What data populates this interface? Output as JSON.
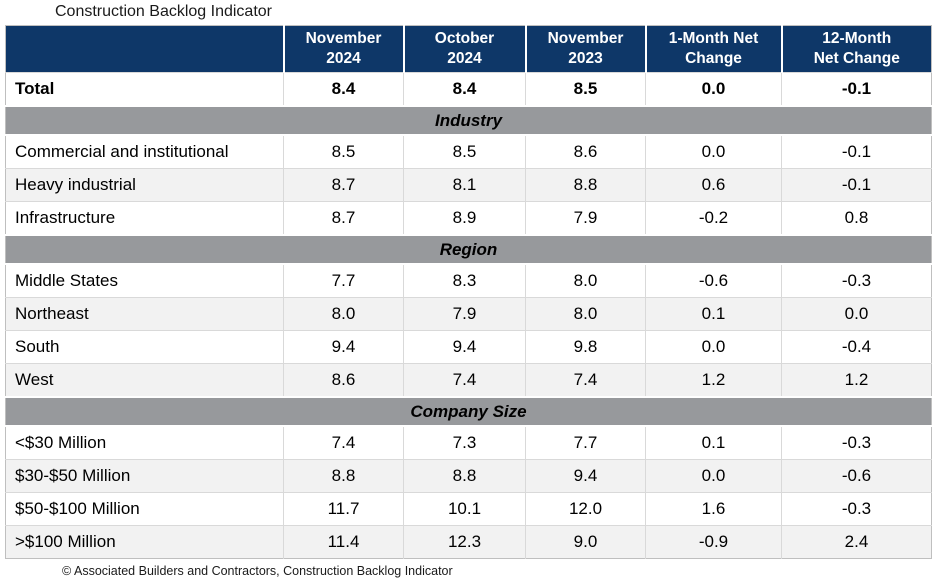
{
  "title": "Construction Backlog Indicator",
  "footer": "© Associated Builders and Contractors, Construction Backlog Indicator",
  "colors": {
    "header_bg": "#0e3768",
    "header_text": "#ffffff",
    "section_band_bg": "#97999c",
    "alt_row_bg": "#f2f2f2",
    "row_border": "#d9d9d9"
  },
  "header": {
    "columns": [
      {
        "lines": []
      },
      {
        "lines": [
          "November",
          "2024"
        ]
      },
      {
        "lines": [
          "October",
          "2024"
        ]
      },
      {
        "lines": [
          "November",
          "2023"
        ]
      },
      {
        "lines": [
          "1-Month Net",
          "Change"
        ]
      },
      {
        "lines": [
          "12-Month",
          "Net Change"
        ]
      }
    ]
  },
  "chart_data": {
    "type": "table",
    "title": "Construction Backlog Indicator",
    "columns": [
      "",
      "November 2024",
      "October 2024",
      "November 2023",
      "1-Month Net Change",
      "12-Month Net Change"
    ],
    "sections": [
      {
        "name": null,
        "rows": [
          {
            "label": "Total",
            "bold": true,
            "values": [
              8.4,
              8.4,
              8.5,
              0.0,
              -0.1
            ]
          }
        ]
      },
      {
        "name": "Industry",
        "rows": [
          {
            "label": "Commercial and institutional",
            "values": [
              8.5,
              8.5,
              8.6,
              0.0,
              -0.1
            ]
          },
          {
            "label": "Heavy industrial",
            "values": [
              8.7,
              8.1,
              8.8,
              0.6,
              -0.1
            ]
          },
          {
            "label": "Infrastructure",
            "values": [
              8.7,
              8.9,
              7.9,
              -0.2,
              0.8
            ]
          }
        ]
      },
      {
        "name": "Region",
        "rows": [
          {
            "label": "Middle States",
            "values": [
              7.7,
              8.3,
              8.0,
              -0.6,
              -0.3
            ]
          },
          {
            "label": "Northeast",
            "values": [
              8.0,
              7.9,
              8.0,
              0.1,
              0.0
            ]
          },
          {
            "label": "South",
            "values": [
              9.4,
              9.4,
              9.8,
              0.0,
              -0.4
            ]
          },
          {
            "label": "West",
            "values": [
              8.6,
              7.4,
              7.4,
              1.2,
              1.2
            ]
          }
        ]
      },
      {
        "name": "Company Size",
        "rows": [
          {
            "label": "<$30 Million",
            "values": [
              7.4,
              7.3,
              7.7,
              0.1,
              -0.3
            ]
          },
          {
            "label": "$30-$50 Million",
            "values": [
              8.8,
              8.8,
              9.4,
              0.0,
              -0.6
            ]
          },
          {
            "label": "$50-$100 Million",
            "values": [
              11.7,
              10.1,
              12.0,
              1.6,
              -0.3
            ]
          },
          {
            "label": ">$100 Million",
            "values": [
              11.4,
              12.3,
              9.0,
              -0.9,
              2.4
            ]
          }
        ]
      }
    ],
    "source_note": "© Associated Builders and Contractors, Construction Backlog Indicator"
  }
}
